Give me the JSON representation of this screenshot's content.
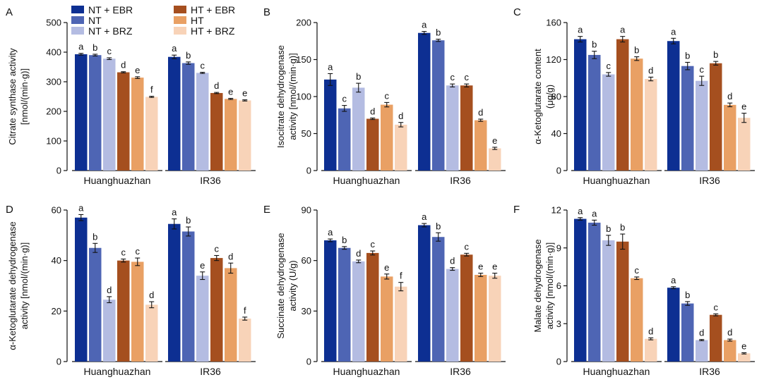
{
  "legend": {
    "items": [
      {
        "label": "NT + EBR",
        "color": "#0d2f92"
      },
      {
        "label": "NT",
        "color": "#4e65b4"
      },
      {
        "label": "NT + BRZ",
        "color": "#b4bce2"
      },
      {
        "label": "HT + EBR",
        "color": "#a54f1f"
      },
      {
        "label": "HT",
        "color": "#e9a064"
      },
      {
        "label": "HT + BRZ",
        "color": "#f8d3b8"
      }
    ]
  },
  "chart_data": [
    {
      "panel": "A",
      "type": "bar",
      "categories": [
        "Huanghuazhan",
        "IR36"
      ],
      "ylabel": [
        "Citrate synthase activity",
        "[nmol/(min·g)]"
      ],
      "ylim": [
        0,
        500
      ],
      "yticks": [
        "0",
        "100",
        "200",
        "300",
        "400",
        "500"
      ],
      "series": [
        {
          "name": "NT + EBR",
          "values": [
            393,
            384
          ],
          "errors": [
            3,
            6
          ],
          "letters": [
            "a",
            "a"
          ]
        },
        {
          "name": "NT",
          "values": [
            390,
            363
          ],
          "errors": [
            3,
            4
          ],
          "letters": [
            "b",
            "b"
          ]
        },
        {
          "name": "NT + BRZ",
          "values": [
            378,
            330
          ],
          "errors": [
            3,
            2
          ],
          "letters": [
            "c",
            "c"
          ]
        },
        {
          "name": "HT + EBR",
          "values": [
            332,
            262
          ],
          "errors": [
            2,
            2
          ],
          "letters": [
            "d",
            "d"
          ]
        },
        {
          "name": "HT",
          "values": [
            314,
            242
          ],
          "errors": [
            3,
            2
          ],
          "letters": [
            "e",
            "e"
          ]
        },
        {
          "name": "HT + BRZ",
          "values": [
            249,
            237
          ],
          "errors": [
            2,
            2
          ],
          "letters": [
            "f",
            "e"
          ]
        }
      ]
    },
    {
      "panel": "B",
      "type": "bar",
      "categories": [
        "Huanghuazhan",
        "IR36"
      ],
      "ylabel": [
        "Isocitrate dehydrogenase",
        "activity [nmol/(min·g)]"
      ],
      "ylim": [
        0,
        200
      ],
      "yticks": [
        "0",
        "50",
        "100",
        "150",
        "200"
      ],
      "series": [
        {
          "name": "NT + EBR",
          "values": [
            123,
            186
          ],
          "errors": [
            8,
            2
          ],
          "letters": [
            "a",
            "a"
          ]
        },
        {
          "name": "NT",
          "values": [
            84,
            176
          ],
          "errors": [
            4,
            1.5
          ],
          "letters": [
            "c",
            "b"
          ]
        },
        {
          "name": "NT + BRZ",
          "values": [
            112,
            115
          ],
          "errors": [
            6,
            2
          ],
          "letters": [
            "b",
            "c"
          ]
        },
        {
          "name": "HT + EBR",
          "values": [
            70,
            115
          ],
          "errors": [
            1,
            2
          ],
          "letters": [
            "d",
            "c"
          ]
        },
        {
          "name": "HT",
          "values": [
            89,
            68
          ],
          "errors": [
            3,
            1.5
          ],
          "letters": [
            "c",
            "d"
          ]
        },
        {
          "name": "HT + BRZ",
          "values": [
            62,
            30
          ],
          "errors": [
            3,
            1.5
          ],
          "letters": [
            "d",
            "e"
          ]
        }
      ]
    },
    {
      "panel": "C",
      "type": "bar",
      "categories": [
        "Huanghuazhan",
        "IR36"
      ],
      "ylabel": [
        "α-Ketoglutarate content",
        "(μg/g)"
      ],
      "ylim": [
        0,
        160
      ],
      "yticks": [
        "0",
        "40",
        "80",
        "120",
        "160"
      ],
      "series": [
        {
          "name": "NT + EBR",
          "values": [
            142,
            140
          ],
          "errors": [
            3,
            3
          ],
          "letters": [
            "a",
            "a"
          ]
        },
        {
          "name": "NT",
          "values": [
            125,
            113
          ],
          "errors": [
            4,
            4
          ],
          "letters": [
            "b",
            "b"
          ]
        },
        {
          "name": "NT + BRZ",
          "values": [
            104,
            97
          ],
          "errors": [
            2,
            5
          ],
          "letters": [
            "c",
            "c"
          ]
        },
        {
          "name": "HT + EBR",
          "values": [
            142,
            116
          ],
          "errors": [
            3,
            2
          ],
          "letters": [
            "a",
            "b"
          ]
        },
        {
          "name": "HT",
          "values": [
            121,
            71
          ],
          "errors": [
            2,
            2
          ],
          "letters": [
            "b",
            "d"
          ]
        },
        {
          "name": "HT + BRZ",
          "values": [
            99,
            57
          ],
          "errors": [
            2,
            5
          ],
          "letters": [
            "d",
            "e"
          ]
        }
      ]
    },
    {
      "panel": "D",
      "type": "bar",
      "categories": [
        "Huanghuazhan",
        "IR36"
      ],
      "ylabel": [
        "α-Ketoglutarate dehydrogenase",
        "activity [nmol/(min·g)]"
      ],
      "ylim": [
        0,
        60
      ],
      "yticks": [
        "0",
        "20",
        "40",
        "60"
      ],
      "series": [
        {
          "name": "NT + EBR",
          "values": [
            57,
            54.5
          ],
          "errors": [
            1.2,
            2
          ],
          "letters": [
            "a",
            "a"
          ]
        },
        {
          "name": "NT",
          "values": [
            45,
            51.5
          ],
          "errors": [
            1.8,
            1.8
          ],
          "letters": [
            "b",
            "b"
          ]
        },
        {
          "name": "NT + BRZ",
          "values": [
            24.5,
            34
          ],
          "errors": [
            1.2,
            1.5
          ],
          "letters": [
            "d",
            "e"
          ]
        },
        {
          "name": "HT + EBR",
          "values": [
            40,
            41
          ],
          "errors": [
            0.6,
            1
          ],
          "letters": [
            "c",
            "c"
          ]
        },
        {
          "name": "HT",
          "values": [
            39.5,
            37
          ],
          "errors": [
            1.5,
            2
          ],
          "letters": [
            "c",
            "d"
          ]
        },
        {
          "name": "HT + BRZ",
          "values": [
            22.5,
            17
          ],
          "errors": [
            1.2,
            0.6
          ],
          "letters": [
            "d",
            "f"
          ]
        }
      ]
    },
    {
      "panel": "E",
      "type": "bar",
      "categories": [
        "Huanghuazhan",
        "IR36"
      ],
      "ylabel": [
        "Succinate dehydrogenase",
        "activity (U/g)"
      ],
      "ylim": [
        0,
        90
      ],
      "yticks": [
        "0",
        "30",
        "60",
        "90"
      ],
      "series": [
        {
          "name": "NT + EBR",
          "values": [
            72,
            81
          ],
          "errors": [
            0.8,
            1
          ],
          "letters": [
            "a",
            "a"
          ]
        },
        {
          "name": "NT",
          "values": [
            67.5,
            74
          ],
          "errors": [
            0.8,
            2.5
          ],
          "letters": [
            "b",
            "b"
          ]
        },
        {
          "name": "NT + BRZ",
          "values": [
            59.5,
            55
          ],
          "errors": [
            0.8,
            0.8
          ],
          "letters": [
            "d",
            "d"
          ]
        },
        {
          "name": "HT + EBR",
          "values": [
            64.5,
            63.5
          ],
          "errors": [
            1.2,
            0.8
          ],
          "letters": [
            "c",
            "c"
          ]
        },
        {
          "name": "HT",
          "values": [
            50.5,
            51.5
          ],
          "errors": [
            1.5,
            1
          ],
          "letters": [
            "e",
            "e"
          ]
        },
        {
          "name": "HT + BRZ",
          "values": [
            44.5,
            51
          ],
          "errors": [
            2.5,
            1.5
          ],
          "letters": [
            "f",
            "e"
          ]
        }
      ]
    },
    {
      "panel": "F",
      "type": "bar",
      "categories": [
        "Huanghuazhan",
        "IR36"
      ],
      "ylabel": [
        "Malate dehydrogenase",
        "activity [nmol/(min·g)]"
      ],
      "ylim": [
        0,
        12
      ],
      "yticks": [
        "0",
        "3",
        "6",
        "9",
        "12"
      ],
      "series": [
        {
          "name": "NT + EBR",
          "values": [
            11.3,
            5.85
          ],
          "errors": [
            0.1,
            0.08
          ],
          "letters": [
            "a",
            "a"
          ]
        },
        {
          "name": "NT",
          "values": [
            11,
            4.6
          ],
          "errors": [
            0.2,
            0.15
          ],
          "letters": [
            "a",
            "b"
          ]
        },
        {
          "name": "NT + BRZ",
          "values": [
            9.6,
            1.7
          ],
          "errors": [
            0.4,
            0.05
          ],
          "letters": [
            "b",
            "d"
          ]
        },
        {
          "name": "HT + EBR",
          "values": [
            9.5,
            3.7
          ],
          "errors": [
            0.6,
            0.08
          ],
          "letters": [
            "b",
            "c"
          ]
        },
        {
          "name": "HT",
          "values": [
            6.6,
            1.7
          ],
          "errors": [
            0.1,
            0.08
          ],
          "letters": [
            "c",
            "d"
          ]
        },
        {
          "name": "HT + BRZ",
          "values": [
            1.8,
            0.65
          ],
          "errors": [
            0.08,
            0.05
          ],
          "letters": [
            "d",
            "e"
          ]
        }
      ]
    }
  ]
}
